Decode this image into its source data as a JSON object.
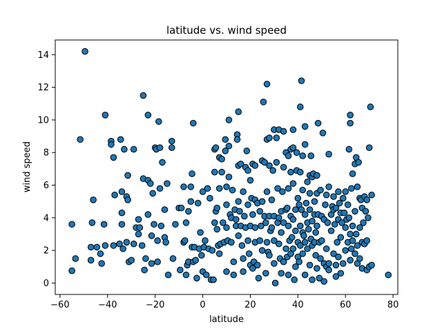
{
  "chart_data": {
    "type": "scatter",
    "title": "latitude vs. wind speed",
    "xlabel": "latitude",
    "ylabel": "wind speed",
    "xlim": [
      -62,
      82
    ],
    "ylim": [
      -0.7,
      14.9
    ],
    "xticks": [
      -60,
      -40,
      -20,
      0,
      20,
      40,
      60,
      80
    ],
    "yticks": [
      0,
      2,
      4,
      6,
      8,
      10,
      12,
      14
    ],
    "xtick_labels": [
      "−60",
      "−40",
      "−20",
      "0",
      "20",
      "40",
      "60",
      "80"
    ],
    "ytick_labels": [
      "0",
      "2",
      "4",
      "6",
      "8",
      "10",
      "12",
      "14"
    ],
    "grid": false,
    "legend": "none",
    "marker_color": "#1f77b4",
    "edge_color": "#000000",
    "points": [
      [
        -49.5,
        14.2
      ],
      [
        -51.5,
        8.8
      ],
      [
        -55,
        3.6
      ],
      [
        -55,
        0.75
      ],
      [
        -53.5,
        1.5
      ],
      [
        -46,
        5.1
      ],
      [
        -46.5,
        3.7
      ],
      [
        -47,
        2.2
      ],
      [
        -47,
        1.4
      ],
      [
        -44.5,
        2.2
      ],
      [
        -43,
        1.8
      ],
      [
        -42.5,
        1.2
      ],
      [
        -41.5,
        3.6
      ],
      [
        -41,
        2.3
      ],
      [
        -41,
        10.3
      ],
      [
        -38.5,
        8.7
      ],
      [
        -38.5,
        8.5
      ],
      [
        -37.5,
        7.7
      ],
      [
        -37,
        5.4
      ],
      [
        -37.5,
        2.3
      ],
      [
        -35,
        2.4
      ],
      [
        -34.5,
        8.8
      ],
      [
        -34,
        5.6
      ],
      [
        -34,
        4.3
      ],
      [
        -34,
        3.6
      ],
      [
        -33.5,
        2.1
      ],
      [
        -33,
        8.2
      ],
      [
        -32,
        5.3
      ],
      [
        -32,
        2.5
      ],
      [
        -31.5,
        6.6
      ],
      [
        -31.5,
        5.1
      ],
      [
        -31,
        1.3
      ],
      [
        -30,
        1.4
      ],
      [
        -29,
        8.2
      ],
      [
        -29,
        2.4
      ],
      [
        -28,
        3.4
      ],
      [
        -27,
        3.9
      ],
      [
        -27,
        3
      ],
      [
        -26.5,
        3.4
      ],
      [
        -25.5,
        2.3
      ],
      [
        -25,
        6.4
      ],
      [
        -25,
        11.5
      ],
      [
        -24.5,
        0.8
      ],
      [
        -24,
        1.5
      ],
      [
        -23,
        6.3
      ],
      [
        -23,
        4.2
      ],
      [
        -23,
        10.3
      ],
      [
        -22,
        6.1
      ],
      [
        -21.5,
        2.9
      ],
      [
        -21.5,
        1.2
      ],
      [
        -21,
        5.5
      ],
      [
        -20.5,
        3.6
      ],
      [
        -20,
        8.3
      ],
      [
        -19.5,
        8.2
      ],
      [
        -19,
        2.6
      ],
      [
        -19,
        1.3
      ],
      [
        -18.5,
        9.9
      ],
      [
        -18,
        8.3
      ],
      [
        -18,
        5.8
      ],
      [
        -17.5,
        3.5
      ],
      [
        -17,
        7.4
      ],
      [
        -16,
        2.8
      ],
      [
        -16,
        4.5
      ],
      [
        -15.5,
        2.5
      ],
      [
        -15,
        6.1
      ],
      [
        -14.5,
        0.5
      ],
      [
        -13,
        8.3
      ],
      [
        -13,
        8.7
      ],
      [
        -12.5,
        1.5
      ],
      [
        -11.5,
        3.6
      ],
      [
        -10,
        4.6
      ],
      [
        -9.5,
        0.8
      ],
      [
        -9,
        4.6
      ],
      [
        -8,
        2.5
      ],
      [
        -8,
        5.9
      ],
      [
        -7.5,
        2.6
      ],
      [
        -7,
        0.5
      ],
      [
        -7,
        3.7
      ],
      [
        -6.5,
        1.1
      ],
      [
        -6,
        1.3
      ],
      [
        -6,
        4.4
      ],
      [
        -5,
        5
      ],
      [
        -5,
        5.9
      ],
      [
        -4.5,
        2.2
      ],
      [
        -4.5,
        6.7
      ],
      [
        -4,
        1.3
      ],
      [
        -4,
        9.8
      ],
      [
        -3.5,
        2.2
      ],
      [
        -3,
        1.4
      ],
      [
        -2.5,
        0.3
      ],
      [
        -2,
        4.9
      ],
      [
        -1.5,
        2.1
      ],
      [
        -1,
        3.1
      ],
      [
        -0.5,
        1.7
      ],
      [
        0,
        5.6
      ],
      [
        0,
        0.7
      ],
      [
        0.5,
        2.2
      ],
      [
        1,
        2.6
      ],
      [
        1.5,
        0.5
      ],
      [
        2,
        5.8
      ],
      [
        2.5,
        2.1
      ],
      [
        3,
        5.2
      ],
      [
        3.5,
        0.2
      ],
      [
        4,
        2
      ],
      [
        4.5,
        0.2
      ],
      [
        5,
        3.7
      ],
      [
        5,
        8.2
      ],
      [
        5,
        6.8
      ],
      [
        5.5,
        8.3
      ],
      [
        5.5,
        4.4
      ],
      [
        6,
        4.6
      ],
      [
        6,
        3.3
      ],
      [
        6.5,
        2.3
      ],
      [
        7,
        7.7
      ],
      [
        7,
        5.8
      ],
      [
        7,
        1.8
      ],
      [
        7.5,
        2.4
      ],
      [
        8,
        7.6
      ],
      [
        8,
        6.8
      ],
      [
        8.5,
        3.7
      ],
      [
        9,
        2.5
      ],
      [
        9.5,
        8.8
      ],
      [
        9.5,
        8.1
      ],
      [
        10,
        5.9
      ],
      [
        10,
        4.8
      ],
      [
        10,
        3.4
      ],
      [
        10,
        0.7
      ],
      [
        10.5,
        2.6
      ],
      [
        11,
        8.4
      ],
      [
        11,
        10
      ],
      [
        11,
        6.5
      ],
      [
        11.5,
        4.2
      ],
      [
        12,
        4
      ],
      [
        12,
        2.5
      ],
      [
        12.5,
        5.7
      ],
      [
        13,
        1.3
      ],
      [
        13,
        0.5
      ],
      [
        13.5,
        4.5
      ],
      [
        14,
        3.9
      ],
      [
        14,
        3.5
      ],
      [
        14.5,
        9.1
      ],
      [
        14.5,
        8.8
      ],
      [
        15,
        10.5
      ],
      [
        15,
        7.2
      ],
      [
        15,
        5
      ],
      [
        15,
        2.9
      ],
      [
        15.5,
        4.4
      ],
      [
        16,
        7.3
      ],
      [
        16,
        3.5
      ],
      [
        16.5,
        2.3
      ],
      [
        17,
        5.6
      ],
      [
        17,
        1.5
      ],
      [
        17,
        0.7
      ],
      [
        17.5,
        4.1
      ],
      [
        18,
        7.1
      ],
      [
        18,
        3.4
      ],
      [
        18.5,
        8.1
      ],
      [
        19,
        6.9
      ],
      [
        19,
        4.8
      ],
      [
        19,
        2.6
      ],
      [
        19.5,
        1.8
      ],
      [
        20,
        6.3
      ],
      [
        20,
        3.5
      ],
      [
        20,
        1.1
      ],
      [
        20.5,
        5.2
      ],
      [
        21,
        7.3
      ],
      [
        21,
        4.2
      ],
      [
        21,
        0.9
      ],
      [
        21.5,
        1.3
      ],
      [
        22,
        7.2
      ],
      [
        22,
        5.1
      ],
      [
        22,
        3.4
      ],
      [
        22,
        2.5
      ],
      [
        23,
        4.9
      ],
      [
        23,
        1.1
      ],
      [
        23.5,
        0.3
      ],
      [
        24,
        4.4
      ],
      [
        24,
        2.6
      ],
      [
        24.5,
        3.5
      ],
      [
        25,
        7.5
      ],
      [
        25,
        5
      ],
      [
        25,
        2
      ],
      [
        25.5,
        11.1
      ],
      [
        26,
        7.4
      ],
      [
        26,
        4.1
      ],
      [
        26.5,
        3.7
      ],
      [
        26.5,
        0.6
      ],
      [
        27,
        8.8
      ],
      [
        27,
        12.2
      ],
      [
        27,
        5.6
      ],
      [
        27,
        2.5
      ],
      [
        27.5,
        1.9
      ],
      [
        28,
        8.9
      ],
      [
        28,
        7.2
      ],
      [
        28,
        4.1
      ],
      [
        28,
        1.7
      ],
      [
        28.5,
        3.2
      ],
      [
        29,
        5.1
      ],
      [
        29,
        3.4
      ],
      [
        29.5,
        6.9
      ],
      [
        30,
        9.4
      ],
      [
        30,
        4.1
      ],
      [
        30,
        2.6
      ],
      [
        30,
        1.2
      ],
      [
        30.5,
        0
      ],
      [
        31,
        7.4
      ],
      [
        31,
        8.9
      ],
      [
        31.5,
        5.8
      ],
      [
        31.5,
        3.7
      ],
      [
        32,
        9.4
      ],
      [
        32,
        4
      ],
      [
        32,
        2.4
      ],
      [
        32.5,
        1.5
      ],
      [
        33,
        4.4
      ],
      [
        33,
        3.1
      ],
      [
        33,
        0.6
      ],
      [
        33.5,
        5.6
      ],
      [
        34,
        9.3
      ],
      [
        34,
        7.1
      ],
      [
        34,
        3.7
      ],
      [
        34,
        1.3
      ],
      [
        35,
        8
      ],
      [
        35,
        4.5
      ],
      [
        35,
        2.1
      ],
      [
        35.5,
        4.6
      ],
      [
        35.5,
        1.6
      ],
      [
        36,
        7.8
      ],
      [
        36,
        5.8
      ],
      [
        36,
        3.5
      ],
      [
        36,
        0.5
      ],
      [
        36.5,
        2.6
      ],
      [
        37,
        8.2
      ],
      [
        37,
        6.8
      ],
      [
        37,
        4.1
      ],
      [
        37,
        1.8
      ],
      [
        37.5,
        2.8
      ],
      [
        38,
        9.4
      ],
      [
        38,
        8.3
      ],
      [
        38,
        6.1
      ],
      [
        38,
        3.9
      ],
      [
        38,
        2.1
      ],
      [
        38.5,
        0.2
      ],
      [
        39,
        4.5
      ],
      [
        39,
        3.2
      ],
      [
        39,
        1
      ],
      [
        39.5,
        6.9
      ],
      [
        39.5,
        8
      ],
      [
        40,
        5.2
      ],
      [
        40,
        2.5
      ],
      [
        40,
        1.6
      ],
      [
        40.5,
        4.8
      ],
      [
        40.5,
        1.3
      ],
      [
        41,
        10.8
      ],
      [
        41,
        6.8
      ],
      [
        41,
        3.5
      ],
      [
        41,
        2.3
      ],
      [
        41.5,
        12.4
      ],
      [
        41.5,
        4.5
      ],
      [
        42,
        7.8
      ],
      [
        42,
        5.7
      ],
      [
        42,
        3.1
      ],
      [
        42,
        1.8
      ],
      [
        42.5,
        2.9
      ],
      [
        43,
        9.6
      ],
      [
        43,
        8.5
      ],
      [
        43,
        4.2
      ],
      [
        43,
        2.5
      ],
      [
        43,
        0.5
      ],
      [
        43.5,
        4.9
      ],
      [
        44,
        6.2
      ],
      [
        44,
        3.7
      ],
      [
        44,
        2.1
      ],
      [
        44.5,
        3.3
      ],
      [
        45,
        6.6
      ],
      [
        45,
        5.5
      ],
      [
        45,
        4.5
      ],
      [
        45,
        1.1
      ],
      [
        45.5,
        7.8
      ],
      [
        45.5,
        2.7
      ],
      [
        46,
        6.5
      ],
      [
        46,
        3.8
      ],
      [
        46,
        2.3
      ],
      [
        46,
        0.2
      ],
      [
        46.5,
        6.7
      ],
      [
        47,
        5
      ],
      [
        47,
        4.2
      ],
      [
        47,
        2.5
      ],
      [
        47.5,
        3.1
      ],
      [
        47.5,
        1.7
      ],
      [
        48,
        6.6
      ],
      [
        48,
        5.5
      ],
      [
        48,
        3.5
      ],
      [
        48,
        0.9
      ],
      [
        48.5,
        9.8
      ],
      [
        48.5,
        4.2
      ],
      [
        49,
        2.5
      ],
      [
        49,
        0.3
      ],
      [
        49.5,
        5.7
      ],
      [
        49.5,
        1.5
      ],
      [
        50,
        4.1
      ],
      [
        50,
        2.6
      ],
      [
        50.5,
        9.2
      ],
      [
        51,
        3.9
      ],
      [
        51,
        1.2
      ],
      [
        51,
        0.1
      ],
      [
        51.5,
        4.8
      ],
      [
        52,
        5.4
      ],
      [
        52,
        2.1
      ],
      [
        52,
        1
      ],
      [
        52.5,
        3.7
      ],
      [
        53,
        5.9
      ],
      [
        53,
        7.9
      ],
      [
        53,
        1.2
      ],
      [
        53,
        0.8
      ],
      [
        54,
        4.2
      ],
      [
        54,
        3.2
      ],
      [
        54.5,
        4.7
      ],
      [
        55,
        5.3
      ],
      [
        55,
        4.5
      ],
      [
        55,
        1.8
      ],
      [
        55.5,
        3.6
      ],
      [
        56,
        4.6
      ],
      [
        56,
        1.1
      ],
      [
        56,
        0.4
      ],
      [
        56.5,
        2.5
      ],
      [
        57,
        5.6
      ],
      [
        57,
        3.9
      ],
      [
        57,
        1.6
      ],
      [
        57.5,
        4.9
      ],
      [
        58,
        4.3
      ],
      [
        58,
        2.8
      ],
      [
        58,
        0.6
      ],
      [
        58.5,
        3.7
      ],
      [
        59,
        5.2
      ],
      [
        59,
        1.2
      ],
      [
        59.5,
        4.3
      ],
      [
        60,
        5.6
      ],
      [
        60,
        3.4
      ],
      [
        60,
        2
      ],
      [
        60.5,
        3.9
      ],
      [
        61,
        4.8
      ],
      [
        61,
        2.5
      ],
      [
        61.5,
        8.2
      ],
      [
        61.5,
        4
      ],
      [
        62,
        10.3
      ],
      [
        62,
        9.8
      ],
      [
        62,
        3
      ],
      [
        62,
        1.4
      ],
      [
        62.5,
        5.8
      ],
      [
        62.5,
        2.1
      ],
      [
        63,
        6.7
      ],
      [
        63,
        3.5
      ],
      [
        63,
        2.6
      ],
      [
        64,
        7.3
      ],
      [
        64,
        4.4
      ],
      [
        64,
        1.8
      ],
      [
        64.5,
        7.7
      ],
      [
        64.5,
        3
      ],
      [
        65,
        5.9
      ],
      [
        65,
        2.3
      ],
      [
        65,
        1.2
      ],
      [
        65.5,
        7.4
      ],
      [
        66,
        5.2
      ],
      [
        66,
        3.4
      ],
      [
        66,
        1.5
      ],
      [
        66.5,
        5.1
      ],
      [
        67,
        4.6
      ],
      [
        67,
        2.5
      ],
      [
        67,
        0.9
      ],
      [
        67.5,
        3.7
      ],
      [
        68,
        5.3
      ],
      [
        68,
        2.4
      ],
      [
        68.5,
        4.4
      ],
      [
        69,
        5.1
      ],
      [
        69,
        2.6
      ],
      [
        69,
        0.8
      ],
      [
        69.5,
        4
      ],
      [
        70,
        8.3
      ],
      [
        70,
        1
      ],
      [
        70.5,
        10.8
      ],
      [
        71,
        5.4
      ],
      [
        71,
        1.1
      ],
      [
        78,
        0.5
      ]
    ]
  }
}
